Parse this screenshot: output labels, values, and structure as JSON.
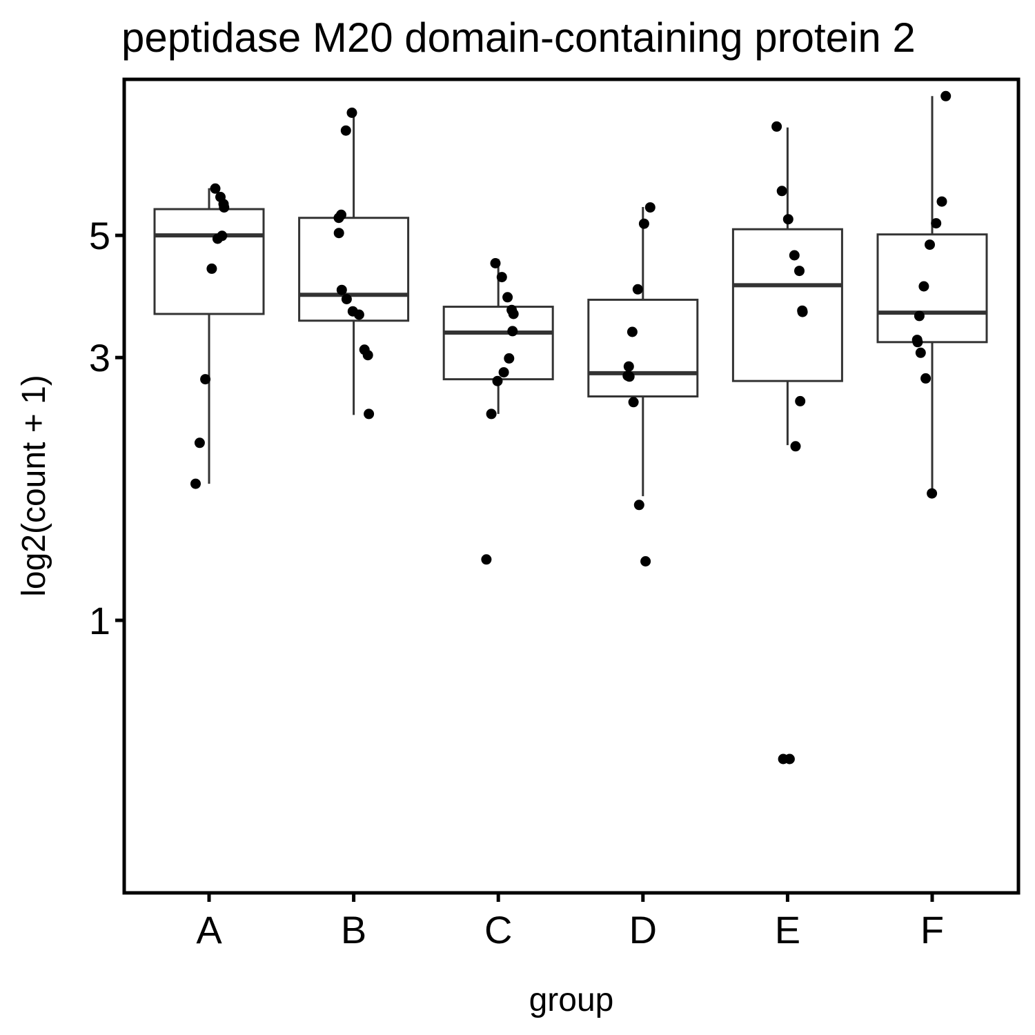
{
  "chart_data": {
    "type": "box",
    "title": "peptidase M20 domain-containing protein 2",
    "xlabel": "group",
    "ylabel": "log2(count + 1)",
    "y_scale": "log",
    "ylim": [
      0.32,
      9.6
    ],
    "y_ticks": [
      1,
      3,
      5
    ],
    "y_tick_labels": [
      "1",
      "3",
      "5"
    ],
    "categories": [
      "A",
      "B",
      "C",
      "D",
      "E",
      "F"
    ],
    "grid": false,
    "legend": "none",
    "boxes": [
      {
        "category": "A",
        "whisker_low": 1.77,
        "q1": 3.6,
        "median": 5.0,
        "q3": 5.58,
        "whisker_high": 6.09
      },
      {
        "category": "B",
        "whisker_low": 2.36,
        "q1": 3.5,
        "median": 3.9,
        "q3": 5.38,
        "whisker_high": 8.32
      },
      {
        "category": "C",
        "whisker_low": 2.37,
        "q1": 2.74,
        "median": 3.33,
        "q3": 3.71,
        "whisker_high": 4.53
      },
      {
        "category": "D",
        "whisker_low": 1.68,
        "q1": 2.55,
        "median": 2.81,
        "q3": 3.82,
        "whisker_high": 5.63
      },
      {
        "category": "E",
        "whisker_low": 2.08,
        "q1": 2.72,
        "median": 4.06,
        "q3": 5.13,
        "whisker_high": 7.85
      },
      {
        "category": "F",
        "whisker_low": 1.7,
        "q1": 3.2,
        "median": 3.62,
        "q3": 5.02,
        "whisker_high": 8.95
      }
    ],
    "points": [
      {
        "category": "A",
        "values": [
          6.08,
          5.87,
          5.7,
          5.62,
          4.99,
          4.93,
          4.35,
          2.74,
          2.1,
          1.77
        ]
      },
      {
        "category": "B",
        "values": [
          8.35,
          7.75,
          5.45,
          5.38,
          5.05,
          3.98,
          3.83,
          3.64,
          3.59,
          3.1,
          3.03,
          2.37
        ]
      },
      {
        "category": "C",
        "values": [
          4.45,
          4.2,
          3.86,
          3.66,
          3.6,
          3.35,
          2.99,
          2.82,
          2.72,
          2.37,
          1.29
        ]
      },
      {
        "category": "D",
        "values": [
          5.62,
          5.25,
          3.99,
          3.34,
          2.89,
          2.78,
          2.77,
          2.49,
          1.62,
          1.28
        ]
      },
      {
        "category": "E",
        "values": [
          7.88,
          6.02,
          5.35,
          4.6,
          4.31,
          3.65,
          3.63,
          2.5,
          2.07,
          0.56,
          0.56
        ]
      },
      {
        "category": "F",
        "values": [
          8.95,
          5.76,
          5.26,
          4.81,
          4.04,
          3.57,
          3.23,
          3.2,
          3.06,
          2.75,
          1.7
        ]
      }
    ]
  }
}
